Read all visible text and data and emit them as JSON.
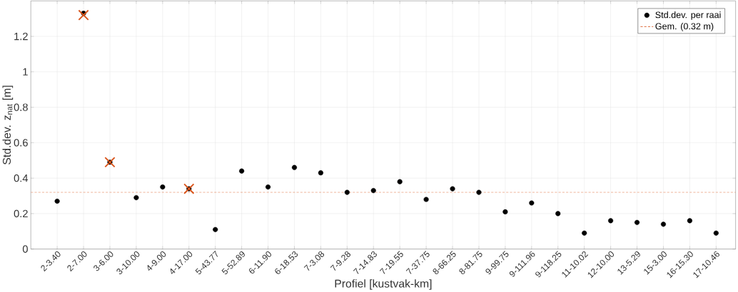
{
  "chart_data": {
    "type": "scatter",
    "xlabel": "Profiel [kustvak-km]",
    "ylabel": "Std.dev. z$_{nat}$ [m]",
    "categories": [
      "2-3.40",
      "2-7.00",
      "3-6.00",
      "3-10.00",
      "4-9.00",
      "4-17.00",
      "5-43.77",
      "5-52.89",
      "6-11.90",
      "6-18.53",
      "7-3.08",
      "7-9.28",
      "7-14.83",
      "7-19.55",
      "7-37.75",
      "8-66.25",
      "8-81.75",
      "9-99.75",
      "9-111.96",
      "9-118.25",
      "11-10.02",
      "12-10.00",
      "13-5.29",
      "15-3.00",
      "16-15.30",
      "17-10.46"
    ],
    "series": [
      {
        "name": "Std.dev. per raai",
        "color": "#000000",
        "marker": "circle",
        "values": [
          0.27,
          1.33,
          0.49,
          0.29,
          0.35,
          0.34,
          0.11,
          0.44,
          0.35,
          0.46,
          0.43,
          0.32,
          0.33,
          0.38,
          0.28,
          0.34,
          0.32,
          0.21,
          0.26,
          0.2,
          0.09,
          0.16,
          0.15,
          0.14,
          0.16,
          0.09
        ]
      },
      {
        "color": "#d95319",
        "marker": "cross",
        "values": [
          null,
          1.32,
          0.49,
          null,
          null,
          0.34,
          null,
          null,
          null,
          null,
          null,
          null,
          null,
          null,
          null,
          null,
          null,
          null,
          null,
          null,
          null,
          null,
          null,
          null,
          null,
          null
        ]
      }
    ],
    "ref_lines": [
      {
        "axis": "y",
        "value": 0.32,
        "label": "Gem. (0.32 m)",
        "color": "#d95319",
        "line_style": "dashed"
      }
    ],
    "ylim": [
      0,
      1.4
    ],
    "yticks": [
      0,
      0.2,
      0.4,
      0.6,
      0.8,
      1,
      1.2
    ],
    "grid": true,
    "legend": "top right"
  }
}
